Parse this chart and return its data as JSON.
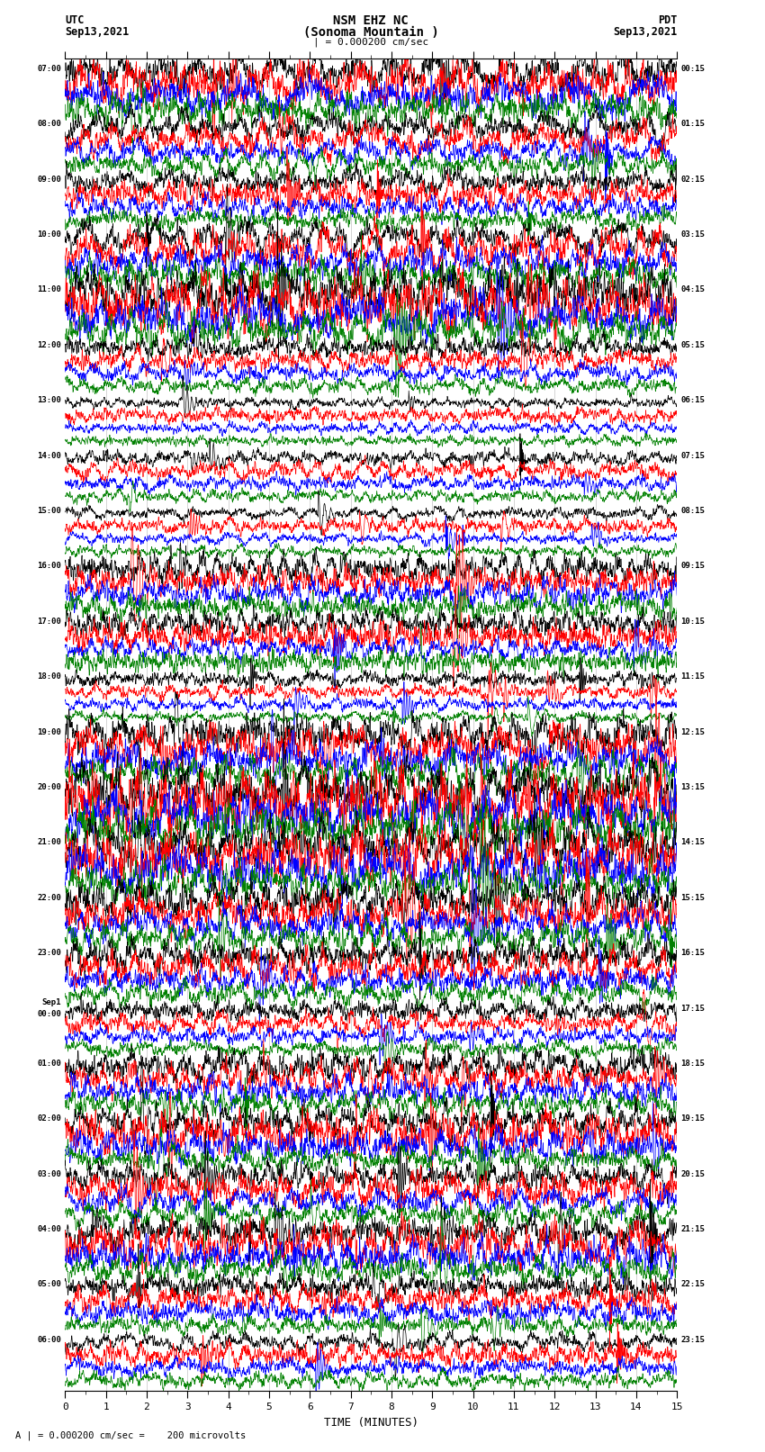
{
  "title_line1": "NSM EHZ NC",
  "title_line2": "(Sonoma Mountain )",
  "title_line3": "| = 0.000200 cm/sec",
  "label_utc": "UTC",
  "label_pdt": "PDT",
  "label_date_left": "Sep13,2021",
  "label_date_right": "Sep13,2021",
  "xlabel": "TIME (MINUTES)",
  "footer": "A | = 0.000200 cm/sec =    200 microvolts",
  "trace_colors": [
    "black",
    "red",
    "blue",
    "green"
  ],
  "n_rows": 24,
  "minutes_per_row": 15,
  "bg_color": "white",
  "grid_color": "#aaaaaa",
  "utc_labels": [
    "07:00",
    "08:00",
    "09:00",
    "10:00",
    "11:00",
    "12:00",
    "13:00",
    "14:00",
    "15:00",
    "16:00",
    "17:00",
    "18:00",
    "19:00",
    "20:00",
    "21:00",
    "22:00",
    "23:00",
    "Sep1\n00:00",
    "01:00",
    "02:00",
    "03:00",
    "04:00",
    "05:00",
    "06:00"
  ],
  "pdt_labels": [
    "00:15",
    "01:15",
    "02:15",
    "03:15",
    "04:15",
    "05:15",
    "06:15",
    "07:15",
    "08:15",
    "09:15",
    "10:15",
    "11:15",
    "12:15",
    "13:15",
    "14:15",
    "15:15",
    "16:15",
    "17:15",
    "18:15",
    "19:15",
    "20:15",
    "21:15",
    "22:15",
    "23:15"
  ],
  "row_amplitudes": [
    2.0,
    1.5,
    1.2,
    1.8,
    2.5,
    1.0,
    0.6,
    0.8,
    0.7,
    1.5,
    1.3,
    0.8,
    2.0,
    2.8,
    2.5,
    2.0,
    1.5,
    1.0,
    1.5,
    1.8,
    1.5,
    1.8,
    1.2,
    1.0
  ],
  "trace_lw": 0.5,
  "n_pts": 2700
}
